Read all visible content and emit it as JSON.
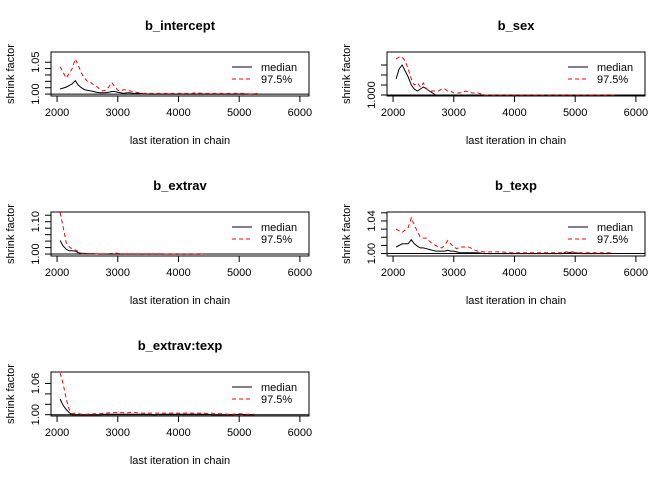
{
  "chart_data": [
    {
      "type": "line",
      "title": "b_intercept",
      "xlabel": "last iteration in chain",
      "ylabel": "shrink factor",
      "xlim": [
        1900,
        6150
      ],
      "ylim": [
        0.997,
        1.066
      ],
      "xticks": [
        2000,
        3000,
        4000,
        5000,
        6000
      ],
      "yticks": [
        1.0,
        1.01,
        1.02,
        1.03,
        1.04,
        1.05
      ],
      "ytick_labels": {
        "1.00": "1.00",
        "1.05": "1.05"
      },
      "legend": {
        "position": "top-right",
        "entries": [
          "median",
          "97.5%"
        ]
      },
      "x": [
        2050,
        2150,
        2250,
        2300,
        2350,
        2400,
        2450,
        2500,
        2550,
        2600,
        2650,
        2700,
        2750,
        2800,
        2850,
        2900,
        2950,
        3000,
        3050,
        3100,
        3150,
        3200,
        3250,
        3300,
        3350,
        3400,
        3500,
        3600,
        3700,
        3800,
        3900,
        4000,
        4100,
        4200,
        4300,
        4400,
        4500,
        4600,
        4700,
        4800,
        4900,
        5000,
        5100,
        5200,
        5300
      ],
      "series": [
        {
          "name": "median",
          "color": "#000000",
          "dash": "solid",
          "values": [
            1.008,
            1.011,
            1.016,
            1.021,
            1.014,
            1.01,
            1.007,
            1.006,
            1.005,
            1.004,
            1.003,
            1.002,
            1.002,
            1.002,
            1.003,
            1.004,
            1.004,
            1.003,
            1.002,
            1.001,
            1.002,
            1.002,
            1.001,
            1.001,
            1.001,
            1.001,
            1.0,
            1.0,
            1.0,
            1.0,
            1.0,
            1.0,
            1.0,
            1.0,
            1.0,
            1.0,
            1.0,
            1.0,
            1.0,
            1.0,
            1.0,
            1.0,
            1.0,
            1.0,
            1.0
          ]
        },
        {
          "name": "97.5%",
          "color": "#ff0000",
          "dash": "dashed",
          "values": [
            1.043,
            1.025,
            1.04,
            1.055,
            1.045,
            1.033,
            1.025,
            1.02,
            1.018,
            1.015,
            1.012,
            1.008,
            1.005,
            1.006,
            1.011,
            1.018,
            1.012,
            1.006,
            1.005,
            1.007,
            1.006,
            1.005,
            1.004,
            1.003,
            1.002,
            1.001,
            1.001,
            1.001,
            1.001,
            1.001,
            1.001,
            1.001,
            1.001,
            1.001,
            1.002,
            1.001,
            1.001,
            1.001,
            1.001,
            1.001,
            1.001,
            1.001,
            1.001,
            1.0,
            1.001
          ]
        }
      ]
    },
    {
      "type": "line",
      "title": "b_sex",
      "xlabel": "last iteration in chain",
      "ylabel": "shrink factor",
      "xlim": [
        1900,
        6150
      ],
      "ylim": [
        0.9995,
        1.0215
      ],
      "xticks": [
        2000,
        3000,
        4000,
        5000,
        6000
      ],
      "yticks": [
        1.0,
        1.005,
        1.01,
        1.015
      ],
      "ytick_labels": {
        "1.000": "1.000"
      },
      "legend": {
        "position": "top-right",
        "entries": [
          "median",
          "97.5%"
        ]
      },
      "x": [
        2050,
        2100,
        2150,
        2200,
        2250,
        2300,
        2350,
        2400,
        2450,
        2500,
        2550,
        2600,
        2650,
        2700,
        2750,
        2800,
        2850,
        2900,
        2950,
        3000,
        3100,
        3200,
        3300,
        3400,
        3500,
        3600,
        3700,
        3800,
        3900,
        4000,
        4100,
        4200,
        4300,
        4400,
        4500,
        4600,
        4700,
        4800,
        4900,
        5000,
        5100,
        5200,
        5300,
        5400,
        5500,
        5600,
        5700
      ],
      "series": [
        {
          "name": "median",
          "color": "#000000",
          "dash": "solid",
          "values": [
            1.008,
            1.013,
            1.015,
            1.012,
            1.009,
            1.005,
            1.003,
            1.002,
            1.003,
            1.004,
            1.003,
            1.002,
            1.001,
            1.0,
            1.0,
            1.0,
            1.0,
            1.0,
            1.0,
            1.0,
            1.0,
            1.0,
            1.0,
            1.0,
            1.0,
            1.0,
            1.0,
            1.0,
            1.0,
            1.0,
            1.0,
            1.0,
            1.0,
            1.0,
            1.0,
            1.0,
            1.0,
            1.0,
            1.0,
            1.0,
            1.0,
            1.0,
            1.0,
            1.0,
            1.0,
            1.0,
            1.0
          ]
        },
        {
          "name": "97.5%",
          "color": "#ff0000",
          "dash": "dashed",
          "values": [
            1.018,
            1.019,
            1.019,
            1.017,
            1.013,
            1.008,
            1.005,
            1.006,
            1.004,
            1.006,
            1.003,
            1.002,
            1.002,
            1.002,
            1.002,
            1.003,
            1.003,
            1.002,
            1.002,
            1.001,
            1.001,
            1.002,
            1.001,
            1.001,
            1.0,
            1.0,
            1.0,
            1.0,
            1.0,
            1.0,
            1.0,
            1.0,
            1.0,
            1.0,
            1.0,
            1.0,
            1.0,
            1.0,
            1.0,
            1.0,
            1.0,
            1.0,
            1.0,
            1.0,
            1.0,
            1.0,
            1.0
          ]
        }
      ]
    },
    {
      "type": "line",
      "title": "b_extrav",
      "xlabel": "last iteration in chain",
      "ylabel": "shrink factor",
      "xlim": [
        1900,
        6150
      ],
      "ylim": [
        0.994,
        1.13
      ],
      "xticks": [
        2000,
        3000,
        4000,
        5000,
        6000
      ],
      "yticks": [
        1.0,
        1.02,
        1.04,
        1.06,
        1.08,
        1.1,
        1.12
      ],
      "ytick_labels": {
        "1.00": "1.00",
        "1.10": "1.10"
      },
      "legend": {
        "position": "top-right",
        "entries": [
          "median",
          "97.5%"
        ]
      },
      "x": [
        2050,
        2100,
        2150,
        2200,
        2250,
        2300,
        2350,
        2400,
        2500,
        2600,
        2700,
        2800,
        2900,
        2950,
        3000,
        3100,
        3200,
        3300,
        3400,
        3500,
        3600,
        3700,
        3800,
        3900,
        4000,
        4100,
        4200,
        4300,
        4350,
        4400
      ],
      "series": [
        {
          "name": "median",
          "color": "#000000",
          "dash": "solid",
          "values": [
            1.042,
            1.025,
            1.015,
            1.01,
            1.01,
            1.009,
            1.004,
            1.002,
            1.001,
            1.001,
            1.0,
            1.0,
            1.0,
            1.0,
            1.0,
            1.0,
            1.0,
            1.0,
            1.0,
            1.0,
            1.0,
            1.0,
            1.0,
            1.0,
            1.0,
            1.0,
            1.0,
            1.0,
            1.0,
            1.0
          ]
        },
        {
          "name": "97.5%",
          "color": "#ff0000",
          "dash": "dashed",
          "values": [
            1.128,
            1.085,
            1.035,
            1.022,
            1.016,
            1.013,
            1.008,
            1.003,
            1.002,
            1.001,
            1.001,
            1.001,
            1.002,
            1.004,
            1.002,
            1.001,
            1.001,
            1.001,
            1.001,
            1.001,
            1.001,
            1.001,
            1.0,
            1.0,
            1.0,
            1.0,
            1.0,
            1.0,
            1.001,
            1.0
          ]
        }
      ]
    },
    {
      "type": "line",
      "title": "b_texp",
      "xlabel": "last iteration in chain",
      "ylabel": "shrink factor",
      "xlim": [
        1900,
        6150
      ],
      "ylim": [
        0.997,
        1.051
      ],
      "xticks": [
        2000,
        3000,
        4000,
        5000,
        6000
      ],
      "yticks": [
        1.0,
        1.01,
        1.02,
        1.03,
        1.04,
        1.05
      ],
      "ytick_labels": {
        "1.00": "1.00",
        "1.04": "1.04"
      },
      "legend": {
        "position": "top-right",
        "entries": [
          "median",
          "97.5%"
        ]
      },
      "x": [
        2050,
        2150,
        2250,
        2300,
        2350,
        2400,
        2450,
        2500,
        2550,
        2600,
        2650,
        2700,
        2750,
        2800,
        2850,
        2900,
        2950,
        3000,
        3050,
        3100,
        3150,
        3200,
        3250,
        3300,
        3350,
        3400,
        3500,
        3600,
        3700,
        3800,
        3900,
        4000,
        4100,
        4200,
        4300,
        4400,
        4500,
        4600,
        4700,
        4800,
        4850,
        4900,
        4950,
        5000,
        5100,
        5200,
        5300,
        5400,
        5500,
        5600
      ],
      "series": [
        {
          "name": "median",
          "color": "#000000",
          "dash": "solid",
          "values": [
            1.008,
            1.012,
            1.012,
            1.017,
            1.012,
            1.009,
            1.007,
            1.007,
            1.006,
            1.005,
            1.004,
            1.003,
            1.003,
            1.003,
            1.003,
            1.004,
            1.003,
            1.003,
            1.002,
            1.001,
            1.001,
            1.001,
            1.001,
            1.001,
            1.001,
            1.001,
            1.0,
            1.0,
            1.0,
            1.0,
            1.0,
            1.0,
            1.0,
            1.0,
            1.0,
            1.0,
            1.0,
            1.0,
            1.0,
            1.0,
            1.002,
            1.001,
            1.002,
            1.001,
            1.0,
            1.0,
            1.0,
            1.0,
            1.0,
            1.0
          ]
        },
        {
          "name": "97.5%",
          "color": "#ff0000",
          "dash": "dashed",
          "values": [
            1.03,
            1.026,
            1.032,
            1.044,
            1.035,
            1.027,
            1.02,
            1.019,
            1.019,
            1.015,
            1.012,
            1.01,
            1.008,
            1.007,
            1.01,
            1.016,
            1.012,
            1.008,
            1.006,
            1.008,
            1.008,
            1.008,
            1.008,
            1.006,
            1.004,
            1.003,
            1.002,
            1.002,
            1.002,
            1.002,
            1.001,
            1.001,
            1.001,
            1.001,
            1.001,
            1.001,
            1.001,
            1.001,
            1.001,
            1.001,
            1.002,
            1.001,
            1.002,
            1.001,
            1.001,
            1.001,
            1.001,
            1.001,
            1.001,
            1.001
          ]
        }
      ]
    },
    {
      "type": "line",
      "title": "b_extrav:texp",
      "xlabel": "last iteration in chain",
      "ylabel": "shrink factor",
      "xlim": [
        1900,
        6150
      ],
      "ylim": [
        0.9975,
        1.082
      ],
      "xticks": [
        2000,
        3000,
        4000,
        5000,
        6000
      ],
      "yticks": [
        1.0,
        1.02,
        1.04,
        1.06
      ],
      "ytick_labels": {
        "1.00": "1.00",
        "1.06": "1.06"
      },
      "legend": {
        "position": "top-right",
        "entries": [
          "median",
          "97.5%"
        ]
      },
      "x": [
        2050,
        2100,
        2150,
        2200,
        2250,
        2300,
        2400,
        2500,
        2600,
        2700,
        2800,
        2900,
        3000,
        3100,
        3200,
        3250,
        3300,
        3400,
        3500,
        3600,
        3700,
        3800,
        3900,
        4000,
        4100,
        4200,
        4300,
        4400,
        4500,
        4550,
        4600,
        4700,
        4800,
        4900,
        5000,
        5100,
        5200,
        5250
      ],
      "series": [
        {
          "name": "median",
          "color": "#000000",
          "dash": "solid",
          "values": [
            1.03,
            1.018,
            1.01,
            1.004,
            1.0,
            1.0,
            1.0,
            1.0,
            1.0,
            1.0,
            1.001,
            1.001,
            1.001,
            1.001,
            1.001,
            1.001,
            1.001,
            1.001,
            1.001,
            1.0,
            1.001,
            1.001,
            1.001,
            1.001,
            1.001,
            1.001,
            1.001,
            1.001,
            1.001,
            1.0,
            1.0,
            1.0,
            1.0,
            1.0,
            1.001,
            1.0,
            1.0,
            1.0
          ]
        },
        {
          "name": "97.5%",
          "color": "#ff0000",
          "dash": "dashed",
          "values": [
            1.08,
            1.06,
            1.03,
            1.01,
            1.002,
            1.003,
            1.001,
            1.001,
            1.002,
            1.002,
            1.003,
            1.004,
            1.004,
            1.004,
            1.004,
            1.005,
            1.004,
            1.003,
            1.003,
            1.003,
            1.003,
            1.003,
            1.003,
            1.003,
            1.003,
            1.003,
            1.003,
            1.003,
            1.002,
            1.003,
            1.002,
            1.002,
            1.001,
            1.001,
            1.002,
            1.001,
            1.001,
            1.001
          ]
        }
      ]
    }
  ]
}
